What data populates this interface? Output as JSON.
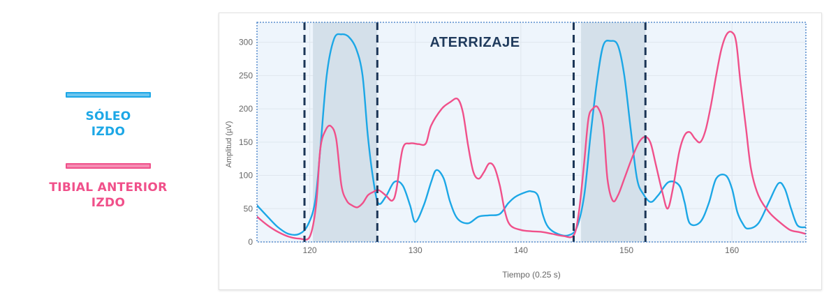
{
  "legend": {
    "soleus": {
      "label": "SÓLEO\nIZDO",
      "color": "#1ca7e6"
    },
    "tibial": {
      "label": "TIBIAL ANTERIOR\nIZDO",
      "color": "#f0508a"
    }
  },
  "colors": {
    "plot_background": "#eef5fc",
    "shaded_region": "#d4e0ea",
    "marker_line": "#1b3556",
    "annotation": "#1f3a5c",
    "axis_text": "#666666"
  },
  "chart_data": {
    "type": "line",
    "title": "",
    "xlabel": "Tiempo (0.25 s)",
    "ylabel": "Amplitud (µV)",
    "xlim": [
      115,
      167
    ],
    "ylim": [
      0,
      330
    ],
    "x_ticks": [
      120,
      130,
      140,
      150,
      160
    ],
    "y_ticks": [
      0,
      50,
      100,
      150,
      200,
      250,
      300
    ],
    "grid": true,
    "annotation": "ATERRIZAJE",
    "shaded_intervals": [
      [
        120.3,
        126.4
      ],
      [
        145.7,
        151.8
      ]
    ],
    "marker_lines": [
      119.5,
      126.4,
      145.0,
      151.8
    ],
    "series": [
      {
        "key": "soleus",
        "color": "#1ca7e6",
        "points": [
          [
            115,
            55
          ],
          [
            116,
            38
          ],
          [
            117,
            22
          ],
          [
            118,
            12
          ],
          [
            119,
            12
          ],
          [
            119.8,
            25
          ],
          [
            120.5,
            60
          ],
          [
            121,
            140
          ],
          [
            121.6,
            250
          ],
          [
            122.3,
            305
          ],
          [
            123,
            312
          ],
          [
            123.7,
            308
          ],
          [
            124.4,
            290
          ],
          [
            125,
            250
          ],
          [
            125.5,
            160
          ],
          [
            126,
            95
          ],
          [
            126.5,
            58
          ],
          [
            127.2,
            68
          ],
          [
            128,
            90
          ],
          [
            128.8,
            85
          ],
          [
            129.5,
            55
          ],
          [
            130,
            30
          ],
          [
            130.8,
            55
          ],
          [
            131.5,
            90
          ],
          [
            132,
            108
          ],
          [
            132.7,
            95
          ],
          [
            133.3,
            60
          ],
          [
            134,
            35
          ],
          [
            135,
            28
          ],
          [
            136,
            38
          ],
          [
            137,
            40
          ],
          [
            138,
            42
          ],
          [
            138.8,
            58
          ],
          [
            139.5,
            68
          ],
          [
            140.5,
            75
          ],
          [
            141,
            76
          ],
          [
            141.6,
            70
          ],
          [
            142.1,
            40
          ],
          [
            142.6,
            22
          ],
          [
            143.5,
            12
          ],
          [
            144.5,
            10
          ],
          [
            145.3,
            22
          ],
          [
            146,
            70
          ],
          [
            146.6,
            160
          ],
          [
            147.2,
            240
          ],
          [
            147.8,
            295
          ],
          [
            148.5,
            302
          ],
          [
            149.2,
            295
          ],
          [
            149.8,
            250
          ],
          [
            150.4,
            170
          ],
          [
            151,
            95
          ],
          [
            151.6,
            72
          ],
          [
            152.3,
            60
          ],
          [
            153,
            70
          ],
          [
            154,
            90
          ],
          [
            155,
            85
          ],
          [
            155.5,
            60
          ],
          [
            156,
            28
          ],
          [
            157,
            30
          ],
          [
            157.8,
            58
          ],
          [
            158.5,
            95
          ],
          [
            159.4,
            100
          ],
          [
            160,
            80
          ],
          [
            160.5,
            45
          ],
          [
            161,
            28
          ],
          [
            161.5,
            20
          ],
          [
            162.5,
            28
          ],
          [
            163.5,
            60
          ],
          [
            164.4,
            88
          ],
          [
            165,
            80
          ],
          [
            165.6,
            50
          ],
          [
            166.2,
            25
          ],
          [
            167,
            22
          ]
        ]
      },
      {
        "key": "tibial",
        "color": "#f0508a",
        "points": [
          [
            115,
            38
          ],
          [
            116,
            25
          ],
          [
            117,
            15
          ],
          [
            118,
            8
          ],
          [
            119,
            5
          ],
          [
            120,
            8
          ],
          [
            120.6,
            55
          ],
          [
            121,
            140
          ],
          [
            121.5,
            168
          ],
          [
            122,
            174
          ],
          [
            122.5,
            155
          ],
          [
            123,
            85
          ],
          [
            123.5,
            62
          ],
          [
            124,
            55
          ],
          [
            124.5,
            52
          ],
          [
            125,
            58
          ],
          [
            125.5,
            70
          ],
          [
            126,
            75
          ],
          [
            126.5,
            78
          ],
          [
            127.2,
            70
          ],
          [
            127.8,
            62
          ],
          [
            128.2,
            78
          ],
          [
            128.8,
            140
          ],
          [
            129.5,
            148
          ],
          [
            130.3,
            147
          ],
          [
            131,
            148
          ],
          [
            131.5,
            175
          ],
          [
            132.5,
            200
          ],
          [
            133.3,
            210
          ],
          [
            134,
            215
          ],
          [
            134.5,
            195
          ],
          [
            135,
            145
          ],
          [
            135.5,
            105
          ],
          [
            136,
            95
          ],
          [
            136.5,
            105
          ],
          [
            137,
            118
          ],
          [
            137.5,
            112
          ],
          [
            138,
            85
          ],
          [
            138.5,
            45
          ],
          [
            139,
            25
          ],
          [
            140,
            18
          ],
          [
            141,
            16
          ],
          [
            142,
            15
          ],
          [
            143,
            12
          ],
          [
            144,
            9
          ],
          [
            145,
            10
          ],
          [
            145.5,
            45
          ],
          [
            146,
            120
          ],
          [
            146.4,
            185
          ],
          [
            146.8,
            200
          ],
          [
            147.3,
            202
          ],
          [
            147.8,
            175
          ],
          [
            148.2,
            95
          ],
          [
            148.7,
            62
          ],
          [
            149.2,
            70
          ],
          [
            149.8,
            95
          ],
          [
            150.5,
            125
          ],
          [
            151.2,
            150
          ],
          [
            151.8,
            158
          ],
          [
            152.3,
            148
          ],
          [
            152.8,
            115
          ],
          [
            153.4,
            75
          ],
          [
            153.9,
            50
          ],
          [
            154.4,
            80
          ],
          [
            155,
            135
          ],
          [
            155.5,
            160
          ],
          [
            156,
            165
          ],
          [
            156.5,
            155
          ],
          [
            157,
            150
          ],
          [
            157.5,
            168
          ],
          [
            158,
            205
          ],
          [
            158.5,
            250
          ],
          [
            159,
            290
          ],
          [
            159.5,
            312
          ],
          [
            160,
            315
          ],
          [
            160.4,
            300
          ],
          [
            160.8,
            240
          ],
          [
            161.3,
            175
          ],
          [
            161.8,
            110
          ],
          [
            162.5,
            70
          ],
          [
            163.5,
            45
          ],
          [
            164.5,
            30
          ],
          [
            165.5,
            18
          ],
          [
            166.3,
            15
          ],
          [
            167,
            12
          ]
        ]
      }
    ]
  }
}
